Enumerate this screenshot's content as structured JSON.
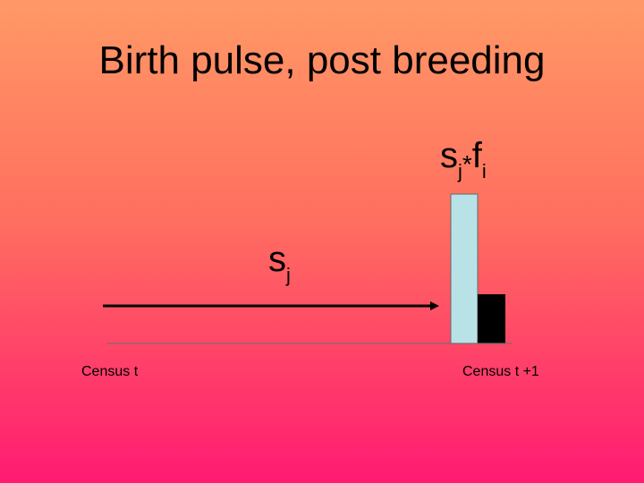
{
  "slide": {
    "title": "Birth pulse, post breeding"
  },
  "labels": {
    "top_formula": {
      "s": "s",
      "s_sub": "j",
      "op": "*",
      "f": "f",
      "f_sub": "i"
    },
    "mid_formula": {
      "s": "s",
      "s_sub": "j"
    },
    "census_left": "Census t",
    "census_right": "Census t +1"
  },
  "colors": {
    "gradient_top": "#ff9966",
    "gradient_bottom": "#ff1a72",
    "light_bar": "#b8e2e6",
    "dark_bar": "#000000",
    "arrow": "#000000"
  }
}
